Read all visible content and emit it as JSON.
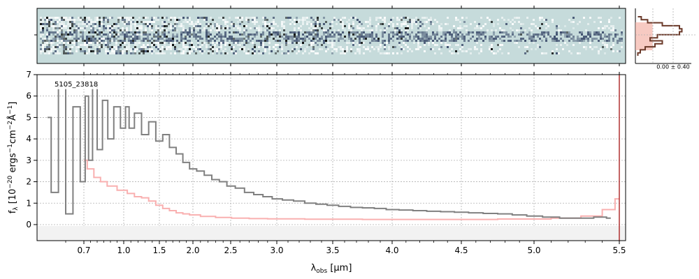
{
  "chart_data": [
    {
      "panel": "spectrum-2d",
      "type": "heatmap",
      "colormap": [
        "#ffffff",
        "#c4dcdc",
        "#3a4a6a",
        "#000000"
      ],
      "background_color": "#c6dbdb",
      "axes_ticks": "no tick labels"
    },
    {
      "panel": "spatial-profile",
      "type": "line",
      "xlabel_text": "0.00 ± 0.40",
      "profile_color": "#6b3a2a",
      "model_fill_color": "#f4b4a8",
      "profile_shape": [
        0.05,
        0.12,
        0.25,
        0.55,
        0.9,
        0.95,
        0.9,
        0.45,
        0.3,
        0.55,
        0.4,
        0.2,
        0.1,
        0.05
      ]
    },
    {
      "panel": "spectrum-1d",
      "type": "line",
      "annotation": "5105_23818",
      "xlabel": "λ_obs [μm]",
      "ylabel": "f_λ [10^-20 ergs^-1 cm^-2 Å^-1]",
      "x_ticks": [
        "0.7",
        "1.0",
        "1.5",
        "2.0",
        "2.5",
        "3.0",
        "3.5",
        "4.0",
        "4.5",
        "5.0",
        "5.5"
      ],
      "y_ticks": [
        "0",
        "1",
        "2",
        "3",
        "4",
        "5",
        "6",
        "7"
      ],
      "x_scale": "nonlinear (compressed at short wavelengths)",
      "ylim": [
        -0.75,
        7.0
      ],
      "grid": true,
      "series": [
        {
          "role": "observed",
          "color": "#808080",
          "points": [
            [
              0.6,
              5.0
            ],
            [
              0.62,
              1.5
            ],
            [
              0.64,
              6.5
            ],
            [
              0.66,
              0.5
            ],
            [
              0.68,
              5.5
            ],
            [
              0.7,
              2.0
            ],
            [
              0.72,
              6.0
            ],
            [
              0.75,
              3.0
            ],
            [
              0.78,
              6.5
            ],
            [
              0.82,
              3.5
            ],
            [
              0.86,
              5.8
            ],
            [
              0.9,
              4.0
            ],
            [
              0.95,
              5.5
            ],
            [
              1.0,
              4.5
            ],
            [
              1.05,
              5.5
            ],
            [
              1.1,
              4.5
            ],
            [
              1.2,
              5.2
            ],
            [
              1.3,
              4.2
            ],
            [
              1.4,
              4.8
            ],
            [
              1.5,
              3.9
            ],
            [
              1.6,
              4.2
            ],
            [
              1.7,
              3.6
            ],
            [
              1.8,
              3.3
            ],
            [
              1.9,
              2.9
            ],
            [
              2.0,
              2.6
            ],
            [
              2.1,
              2.5
            ],
            [
              2.2,
              2.3
            ],
            [
              2.3,
              2.1
            ],
            [
              2.4,
              2.0
            ],
            [
              2.5,
              1.8
            ],
            [
              2.6,
              1.7
            ],
            [
              2.7,
              1.5
            ],
            [
              2.8,
              1.4
            ],
            [
              2.9,
              1.3
            ],
            [
              3.0,
              1.2
            ],
            [
              3.1,
              1.15
            ],
            [
              3.2,
              1.1
            ],
            [
              3.3,
              1.0
            ],
            [
              3.4,
              0.95
            ],
            [
              3.5,
              0.9
            ],
            [
              3.6,
              0.85
            ],
            [
              3.7,
              0.8
            ],
            [
              3.8,
              0.78
            ],
            [
              3.9,
              0.75
            ],
            [
              4.0,
              0.7
            ],
            [
              4.1,
              0.68
            ],
            [
              4.2,
              0.65
            ],
            [
              4.3,
              0.62
            ],
            [
              4.4,
              0.6
            ],
            [
              4.5,
              0.58
            ],
            [
              4.6,
              0.55
            ],
            [
              4.7,
              0.52
            ],
            [
              4.8,
              0.5
            ],
            [
              4.9,
              0.45
            ],
            [
              5.0,
              0.4
            ],
            [
              5.1,
              0.35
            ],
            [
              5.2,
              0.3
            ],
            [
              5.3,
              0.3
            ],
            [
              5.4,
              0.35
            ],
            [
              5.45,
              0.3
            ]
          ]
        },
        {
          "role": "model",
          "color": "#f9b0b0",
          "points": [
            [
              0.7,
              3.0
            ],
            [
              0.75,
              2.6
            ],
            [
              0.8,
              2.2
            ],
            [
              0.85,
              2.0
            ],
            [
              0.9,
              1.8
            ],
            [
              1.0,
              1.6
            ],
            [
              1.1,
              1.45
            ],
            [
              1.2,
              1.3
            ],
            [
              1.3,
              1.25
            ],
            [
              1.4,
              1.1
            ],
            [
              1.5,
              0.9
            ],
            [
              1.6,
              0.75
            ],
            [
              1.7,
              0.65
            ],
            [
              1.8,
              0.55
            ],
            [
              1.9,
              0.5
            ],
            [
              2.0,
              0.45
            ],
            [
              2.2,
              0.38
            ],
            [
              2.4,
              0.33
            ],
            [
              2.6,
              0.3
            ],
            [
              2.8,
              0.28
            ],
            [
              3.0,
              0.27
            ],
            [
              3.5,
              0.25
            ],
            [
              4.0,
              0.24
            ],
            [
              4.5,
              0.24
            ],
            [
              5.0,
              0.26
            ],
            [
              5.2,
              0.3
            ],
            [
              5.35,
              0.4
            ],
            [
              5.45,
              0.7
            ],
            [
              5.5,
              1.2
            ]
          ]
        }
      ],
      "edge_line_color": "#b03030"
    }
  ]
}
